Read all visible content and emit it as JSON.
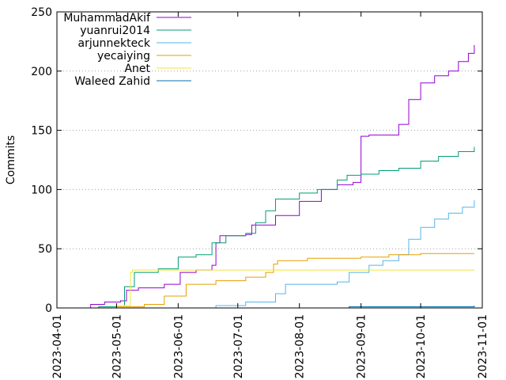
{
  "chart_data": {
    "type": "line",
    "title": "",
    "xlabel": "",
    "ylabel": "Commits",
    "ylim": [
      0,
      250
    ],
    "xlim": [
      "2023-04-01",
      "2023-11-01"
    ],
    "y_ticks": [
      0,
      50,
      100,
      150,
      200,
      250
    ],
    "x_ticks": [
      "2023-04-01",
      "2023-05-01",
      "2023-06-01",
      "2023-07-01",
      "2023-08-01",
      "2023-09-01",
      "2023-10-01",
      "2023-11-01"
    ],
    "grid": "y-major-dotted",
    "legend_position": "top-left",
    "series": [
      {
        "name": "MuhammadAkif",
        "color": "#9400d3",
        "points": [
          [
            "2023-04-10",
            0
          ],
          [
            "2023-04-18",
            3
          ],
          [
            "2023-04-25",
            5
          ],
          [
            "2023-05-03",
            6
          ],
          [
            "2023-05-06",
            15
          ],
          [
            "2023-05-12",
            17
          ],
          [
            "2023-05-25",
            20
          ],
          [
            "2023-06-02",
            30
          ],
          [
            "2023-06-10",
            32
          ],
          [
            "2023-06-18",
            36
          ],
          [
            "2023-06-20",
            55
          ],
          [
            "2023-06-22",
            61
          ],
          [
            "2023-07-05",
            62
          ],
          [
            "2023-07-08",
            70
          ],
          [
            "2023-07-20",
            78
          ],
          [
            "2023-08-01",
            90
          ],
          [
            "2023-08-12",
            100
          ],
          [
            "2023-08-20",
            104
          ],
          [
            "2023-08-28",
            106
          ],
          [
            "2023-09-01",
            145
          ],
          [
            "2023-09-05",
            146
          ],
          [
            "2023-09-18",
            146
          ],
          [
            "2023-09-20",
            155
          ],
          [
            "2023-09-25",
            176
          ],
          [
            "2023-10-01",
            190
          ],
          [
            "2023-10-08",
            196
          ],
          [
            "2023-10-15",
            200
          ],
          [
            "2023-10-20",
            208
          ],
          [
            "2023-10-25",
            215
          ],
          [
            "2023-10-28",
            222
          ]
        ]
      },
      {
        "name": "yuanrui2014",
        "color": "#009e73",
        "points": [
          [
            "2023-04-10",
            0
          ],
          [
            "2023-04-22",
            1
          ],
          [
            "2023-05-01",
            2
          ],
          [
            "2023-05-05",
            18
          ],
          [
            "2023-05-10",
            30
          ],
          [
            "2023-05-22",
            33
          ],
          [
            "2023-06-01",
            43
          ],
          [
            "2023-06-10",
            45
          ],
          [
            "2023-06-18",
            55
          ],
          [
            "2023-06-25",
            61
          ],
          [
            "2023-07-05",
            63
          ],
          [
            "2023-07-10",
            72
          ],
          [
            "2023-07-15",
            82
          ],
          [
            "2023-07-20",
            92
          ],
          [
            "2023-08-01",
            97
          ],
          [
            "2023-08-10",
            100
          ],
          [
            "2023-08-20",
            108
          ],
          [
            "2023-08-25",
            112
          ],
          [
            "2023-09-01",
            113
          ],
          [
            "2023-09-10",
            116
          ],
          [
            "2023-09-20",
            118
          ],
          [
            "2023-10-01",
            124
          ],
          [
            "2023-10-10",
            128
          ],
          [
            "2023-10-20",
            132
          ],
          [
            "2023-10-28",
            136
          ]
        ]
      },
      {
        "name": "arjunnekteck",
        "color": "#56b4e9",
        "points": [
          [
            "2023-04-10",
            0
          ],
          [
            "2023-06-20",
            2
          ],
          [
            "2023-07-05",
            5
          ],
          [
            "2023-07-20",
            12
          ],
          [
            "2023-07-25",
            20
          ],
          [
            "2023-08-10",
            20
          ],
          [
            "2023-08-20",
            22
          ],
          [
            "2023-08-26",
            30
          ],
          [
            "2023-09-05",
            36
          ],
          [
            "2023-09-12",
            40
          ],
          [
            "2023-09-20",
            45
          ],
          [
            "2023-09-25",
            58
          ],
          [
            "2023-10-01",
            68
          ],
          [
            "2023-10-08",
            75
          ],
          [
            "2023-10-15",
            80
          ],
          [
            "2023-10-22",
            85
          ],
          [
            "2023-10-28",
            91
          ]
        ]
      },
      {
        "name": "yecaiying",
        "color": "#e69f00",
        "points": [
          [
            "2023-04-10",
            0
          ],
          [
            "2023-05-01",
            1
          ],
          [
            "2023-05-15",
            3
          ],
          [
            "2023-05-25",
            10
          ],
          [
            "2023-06-05",
            20
          ],
          [
            "2023-06-20",
            23
          ],
          [
            "2023-07-05",
            26
          ],
          [
            "2023-07-15",
            30
          ],
          [
            "2023-07-19",
            37
          ],
          [
            "2023-07-21",
            40
          ],
          [
            "2023-08-05",
            42
          ],
          [
            "2023-09-01",
            43
          ],
          [
            "2023-09-15",
            45
          ],
          [
            "2023-10-01",
            46
          ],
          [
            "2023-10-28",
            46
          ]
        ]
      },
      {
        "name": "Anet",
        "color": "#f0e442",
        "points": [
          [
            "2023-04-10",
            0
          ],
          [
            "2023-05-01",
            2
          ],
          [
            "2023-05-08",
            30
          ],
          [
            "2023-05-09",
            32
          ],
          [
            "2023-10-28",
            32
          ]
        ]
      },
      {
        "name": "Waleed Zahid",
        "color": "#0072b2",
        "points": [
          [
            "2023-04-10",
            0
          ],
          [
            "2023-08-25",
            0
          ],
          [
            "2023-08-26",
            1
          ],
          [
            "2023-10-28",
            2
          ]
        ]
      }
    ]
  }
}
